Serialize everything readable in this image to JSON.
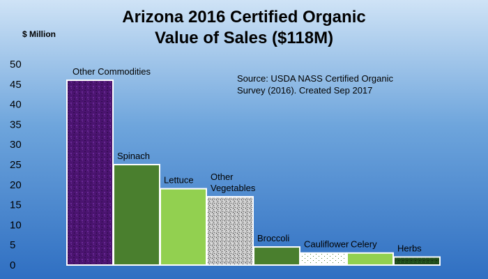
{
  "chart_data": {
    "type": "bar",
    "title_line1": "Arizona 2016 Certified Organic",
    "title_line2": "Value of Sales ($118M)",
    "ylabel": "$ Million",
    "source_line1": "Source: USDA NASS Certified Organic",
    "source_line2": "Survey (2016). Created Sep 2017",
    "ylim": [
      0,
      50
    ],
    "yticks": [
      "0",
      "5",
      "10",
      "15",
      "20",
      "25",
      "30",
      "35",
      "40",
      "45",
      "50"
    ],
    "categories": [
      "Other Commodities",
      "Spinach",
      "Lettuce",
      "Other Vegetables",
      "Broccoli",
      "Cauliflower",
      "Celery",
      "Herbs"
    ],
    "label_lines": [
      [
        "Other Commodities"
      ],
      [
        "Spinach"
      ],
      [
        "Lettuce"
      ],
      [
        "Other",
        "Vegetables"
      ],
      [
        "Broccoli"
      ],
      [
        "Cauliflower"
      ],
      [
        "Celery"
      ],
      [
        "Herbs"
      ]
    ],
    "values": [
      46,
      25,
      19,
      17,
      4.5,
      3,
      3,
      2
    ],
    "bar_fills": [
      "purple-texture",
      "#4a7f2e",
      "#92d050",
      "gray-speckle",
      "#4a7f2e",
      "dotted-white",
      "#92d050",
      "dark-green-texture"
    ],
    "grid": false,
    "legend": "none"
  }
}
